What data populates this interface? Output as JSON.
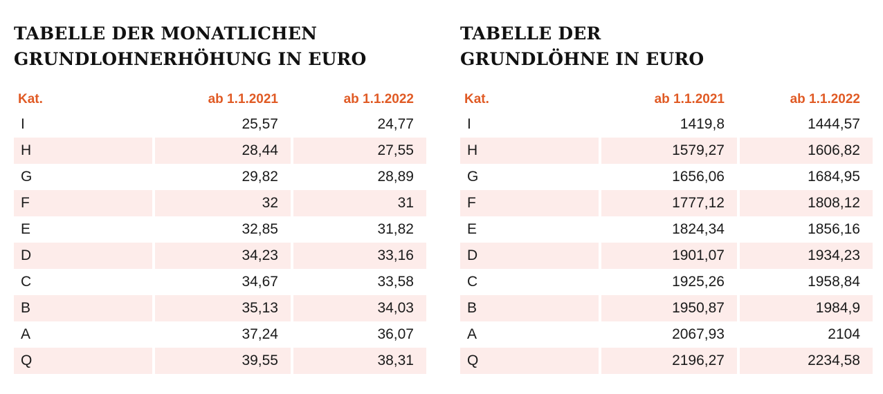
{
  "left_table": {
    "title_line1": "TABELLE DER MONATLICHEN",
    "title_line2": "GRUNDLOHNERHÖHUNG IN EURO",
    "headers": [
      "Kat.",
      "ab 1.1.2021",
      "ab 1.1.2022"
    ],
    "rows": [
      [
        "I",
        "25,57",
        "24,77"
      ],
      [
        "H",
        "28,44",
        "27,55"
      ],
      [
        "G",
        "29,82",
        "28,89"
      ],
      [
        "F",
        "32",
        "31"
      ],
      [
        "E",
        "32,85",
        "31,82"
      ],
      [
        "D",
        "34,23",
        "33,16"
      ],
      [
        "C",
        "34,67",
        "33,58"
      ],
      [
        "B",
        "35,13",
        "34,03"
      ],
      [
        "A",
        "37,24",
        "36,07"
      ],
      [
        "Q",
        "39,55",
        "38,31"
      ]
    ]
  },
  "right_table": {
    "title_line1": "TABELLE DER",
    "title_line2": "GRUNDLÖHNE IN EURO",
    "headers": [
      "Kat.",
      "ab 1.1.2021",
      "ab 1.1.2022"
    ],
    "rows": [
      [
        "I",
        "1419,8",
        "1444,57"
      ],
      [
        "H",
        "1579,27",
        "1606,82"
      ],
      [
        "G",
        "1656,06",
        "1684,95"
      ],
      [
        "F",
        "1777,12",
        "1808,12"
      ],
      [
        "E",
        "1824,34",
        "1856,16"
      ],
      [
        "D",
        "1901,07",
        "1934,23"
      ],
      [
        "C",
        "1925,26",
        "1958,84"
      ],
      [
        "B",
        "1950,87",
        "1984,9"
      ],
      [
        "A",
        "2067,93",
        "2104"
      ],
      [
        "Q",
        "2196,27",
        "2234,58"
      ]
    ]
  },
  "colors": {
    "header_accent": "#e05a24",
    "row_shade": "#fdecea",
    "text": "#1a1a1a"
  }
}
